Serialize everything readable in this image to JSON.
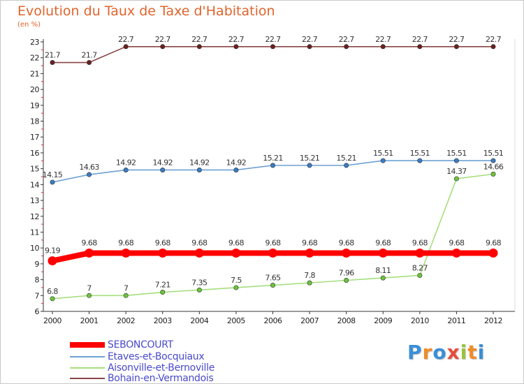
{
  "title": "Evolution du Taux de Taxe d'Habitation",
  "subtitle": "(en %)",
  "logo": {
    "text": "Proxiti",
    "colors": [
      "#3a8fd8",
      "#f08c28",
      "#3a8fd8",
      "#e84c3c",
      "#9ac23c",
      "#f08c28",
      "#3a8fd8"
    ]
  },
  "chart_data": {
    "type": "line",
    "x": [
      2000,
      2001,
      2002,
      2003,
      2004,
      2005,
      2006,
      2007,
      2008,
      2009,
      2010,
      2011,
      2012
    ],
    "ylim": [
      6,
      23
    ],
    "yticks": [
      6,
      7,
      8,
      9,
      10,
      11,
      12,
      13,
      14,
      15,
      16,
      17,
      18,
      19,
      20,
      21,
      22,
      23
    ],
    "grid": false,
    "legend_position": "bottom-left",
    "series": [
      {
        "name": "SEBONCOURT",
        "color": "#ff0000",
        "emphasis": true,
        "values": [
          9.19,
          9.68,
          9.68,
          9.68,
          9.68,
          9.68,
          9.68,
          9.68,
          9.68,
          9.68,
          9.68,
          9.68,
          9.68
        ],
        "labels": [
          "9.19",
          "9.68",
          "9.68",
          "9.68",
          "9.68",
          "9.68",
          "9.68",
          "9.68",
          "9.68",
          "9.68",
          "9.68",
          "9.68",
          "9.68"
        ]
      },
      {
        "name": "Etaves-et-Bocquiaux",
        "color": "#6fa0d4",
        "marker": "#3a7cc4",
        "values": [
          14.15,
          14.63,
          14.92,
          14.92,
          14.92,
          14.92,
          15.21,
          15.21,
          15.21,
          15.51,
          15.51,
          15.51,
          15.51
        ],
        "labels": [
          "14.15",
          "14.63",
          "14.92",
          "14.92",
          "14.92",
          "14.92",
          "15.21",
          "15.21",
          "15.21",
          "15.51",
          "15.51",
          "15.51",
          "15.51"
        ]
      },
      {
        "name": "Aisonville-et-Bernoville",
        "color": "#a6de7e",
        "marker": "#6cc43c",
        "values": [
          6.8,
          7,
          7,
          7.21,
          7.35,
          7.5,
          7.65,
          7.8,
          7.96,
          8.11,
          8.27,
          14.37,
          14.66
        ],
        "labels": [
          "6.8",
          "7",
          "7",
          "7.21",
          "7.35",
          "7.5",
          "7.65",
          "7.8",
          "7.96",
          "8.11",
          "8.27",
          "14.37",
          "14.66"
        ]
      },
      {
        "name": "Bohain-en-Vermandois",
        "color": "#8a4444",
        "marker": "#6a2020",
        "values": [
          21.7,
          21.7,
          22.7,
          22.7,
          22.7,
          22.7,
          22.7,
          22.7,
          22.7,
          22.7,
          22.7,
          22.7,
          22.7
        ],
        "labels": [
          "21.7",
          "21.7",
          "22.7",
          "22.7",
          "22.7",
          "22.7",
          "22.7",
          "22.7",
          "22.7",
          "22.7",
          "22.7",
          "22.7",
          "22.7"
        ]
      }
    ]
  }
}
